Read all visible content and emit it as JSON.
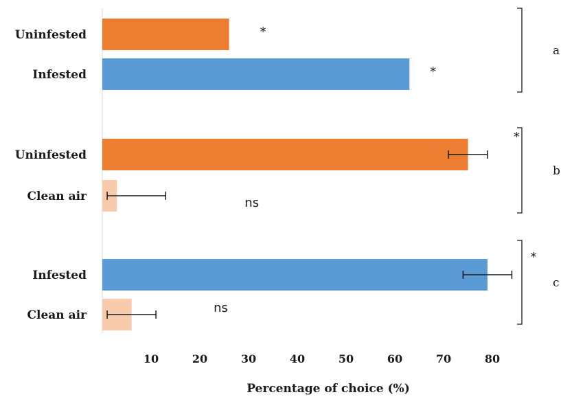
{
  "chart_data": {
    "type": "bar",
    "orientation": "horizontal",
    "xlabel": "Percentage of choice (%)",
    "xlim": [
      0,
      90
    ],
    "xticks": [
      10,
      20,
      30,
      40,
      50,
      60,
      70,
      80
    ],
    "grid": false,
    "groups": [
      {
        "label": "a",
        "bars": [
          {
            "category": "Uninfested",
            "value": 26,
            "error": null,
            "significance": "*",
            "color": "#ED7D31"
          },
          {
            "category": "Infested",
            "value": 63,
            "error": null,
            "significance": "*",
            "color": "#5B9BD5"
          }
        ]
      },
      {
        "label": "b",
        "bars": [
          {
            "category": "Uninfested",
            "value": 75,
            "error": 4,
            "significance": "*",
            "color": "#ED7D31"
          },
          {
            "category": "Clean air",
            "value": 3,
            "error": 10,
            "significance": "ns",
            "color": "#F8CBAD"
          }
        ]
      },
      {
        "label": "c",
        "bars": [
          {
            "category": "Infested",
            "value": 79,
            "error": 5,
            "significance": "*",
            "color": "#5B9BD5"
          },
          {
            "category": "Clean air",
            "value": 6,
            "error": 5,
            "significance": "ns",
            "color": "#F8CBAD"
          }
        ]
      }
    ]
  }
}
